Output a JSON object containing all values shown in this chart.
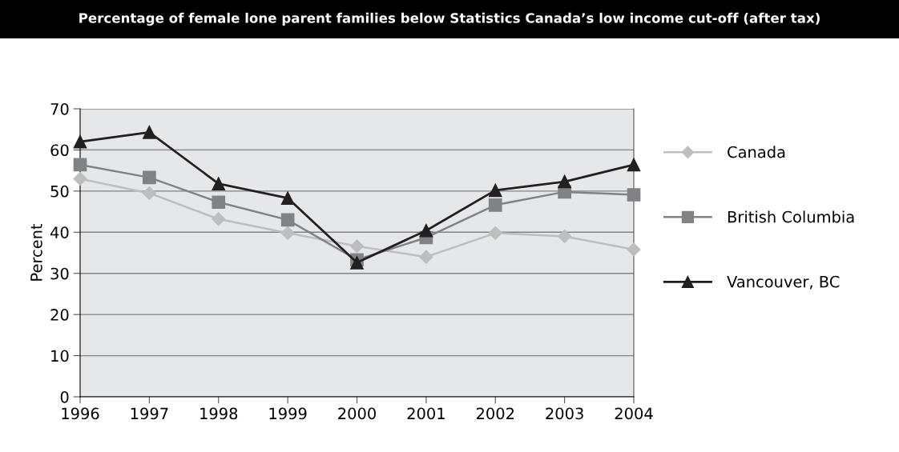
{
  "chart_data": {
    "type": "line",
    "title": "Percentage of female lone parent families below Statistics Canada’s low income cut-off (after tax)",
    "ylabel": "Percent",
    "x": [
      1996,
      1997,
      1998,
      1999,
      2000,
      2001,
      2002,
      2003,
      2004
    ],
    "series": [
      {
        "name": "Canada",
        "color": "#bcbec0",
        "marker": "diamond",
        "values": [
          53.0,
          49.5,
          43.2,
          39.8,
          36.6,
          34.0,
          39.8,
          39.0,
          35.8
        ]
      },
      {
        "name": "British Columbia",
        "color": "#808285",
        "marker": "square",
        "values": [
          56.4,
          53.3,
          47.3,
          43.0,
          33.3,
          38.7,
          46.6,
          49.8,
          49.1
        ]
      },
      {
        "name": "Vancouver, BC",
        "color": "#231f20",
        "marker": "triangle",
        "values": [
          62.0,
          64.3,
          51.8,
          48.3,
          32.6,
          40.4,
          50.2,
          52.3,
          56.4
        ]
      }
    ],
    "xlim": [
      1996,
      2004
    ],
    "xticks": [
      1996,
      1997,
      1998,
      1999,
      2000,
      2001,
      2002,
      2003,
      2004
    ],
    "ylim": [
      0,
      70
    ],
    "yticks": [
      0,
      10,
      20,
      30,
      40,
      50,
      60,
      70
    ],
    "grid": "y",
    "legend": "right",
    "line_style": "solid"
  }
}
